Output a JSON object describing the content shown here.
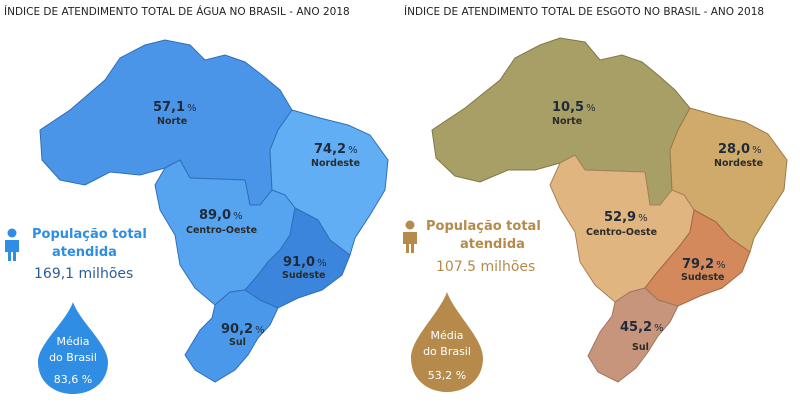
{
  "agua": {
    "title": "ÍNDICE DE ATENDIMENTO TOTAL DE ÁGUA NO BRASIL - ANO 2018",
    "color": "#2f8de4",
    "regions": [
      {
        "name": "Norte",
        "value": "57,1",
        "color": "#4a95e8"
      },
      {
        "name": "Nordeste",
        "value": "74,2",
        "color": "#62aef4"
      },
      {
        "name": "Centro-Oeste",
        "value": "89,0",
        "color": "#56a4f0"
      },
      {
        "name": "Sudeste",
        "value": "91,0",
        "color": "#3b86dc"
      },
      {
        "name": "Sul",
        "value": "90,2",
        "color": "#4a98ea"
      }
    ],
    "population_label_line1": "População total",
    "population_label_line2": "atendida",
    "population_value": "169,1 milhões",
    "average_line1": "Média",
    "average_line2": "do Brasil",
    "average_value": "83,6 %"
  },
  "esgoto": {
    "title": "ÍNDICE DE ATENDIMENTO TOTAL DE ESGOTO NO BRASIL - ANO 2018",
    "color": "#b58a4a",
    "regions": [
      {
        "name": "Norte",
        "value": "10,5",
        "color": "#a89f67"
      },
      {
        "name": "Nordeste",
        "value": "28,0",
        "color": "#d0aa6a"
      },
      {
        "name": "Centro-Oeste",
        "value": "52,9",
        "color": "#e0b57f"
      },
      {
        "name": "Sudeste",
        "value": "79,2",
        "color": "#d3895c"
      },
      {
        "name": "Sul",
        "value": "45,2",
        "color": "#c7957c"
      }
    ],
    "population_label_line1": "População total",
    "population_label_line2": "atendida",
    "population_value": "107.5 milhões",
    "average_line1": "Média",
    "average_line2": "do Brasil",
    "average_value": "53,2 %"
  },
  "percent_sign": "%",
  "icons": [
    "person-icon",
    "drop-icon"
  ]
}
